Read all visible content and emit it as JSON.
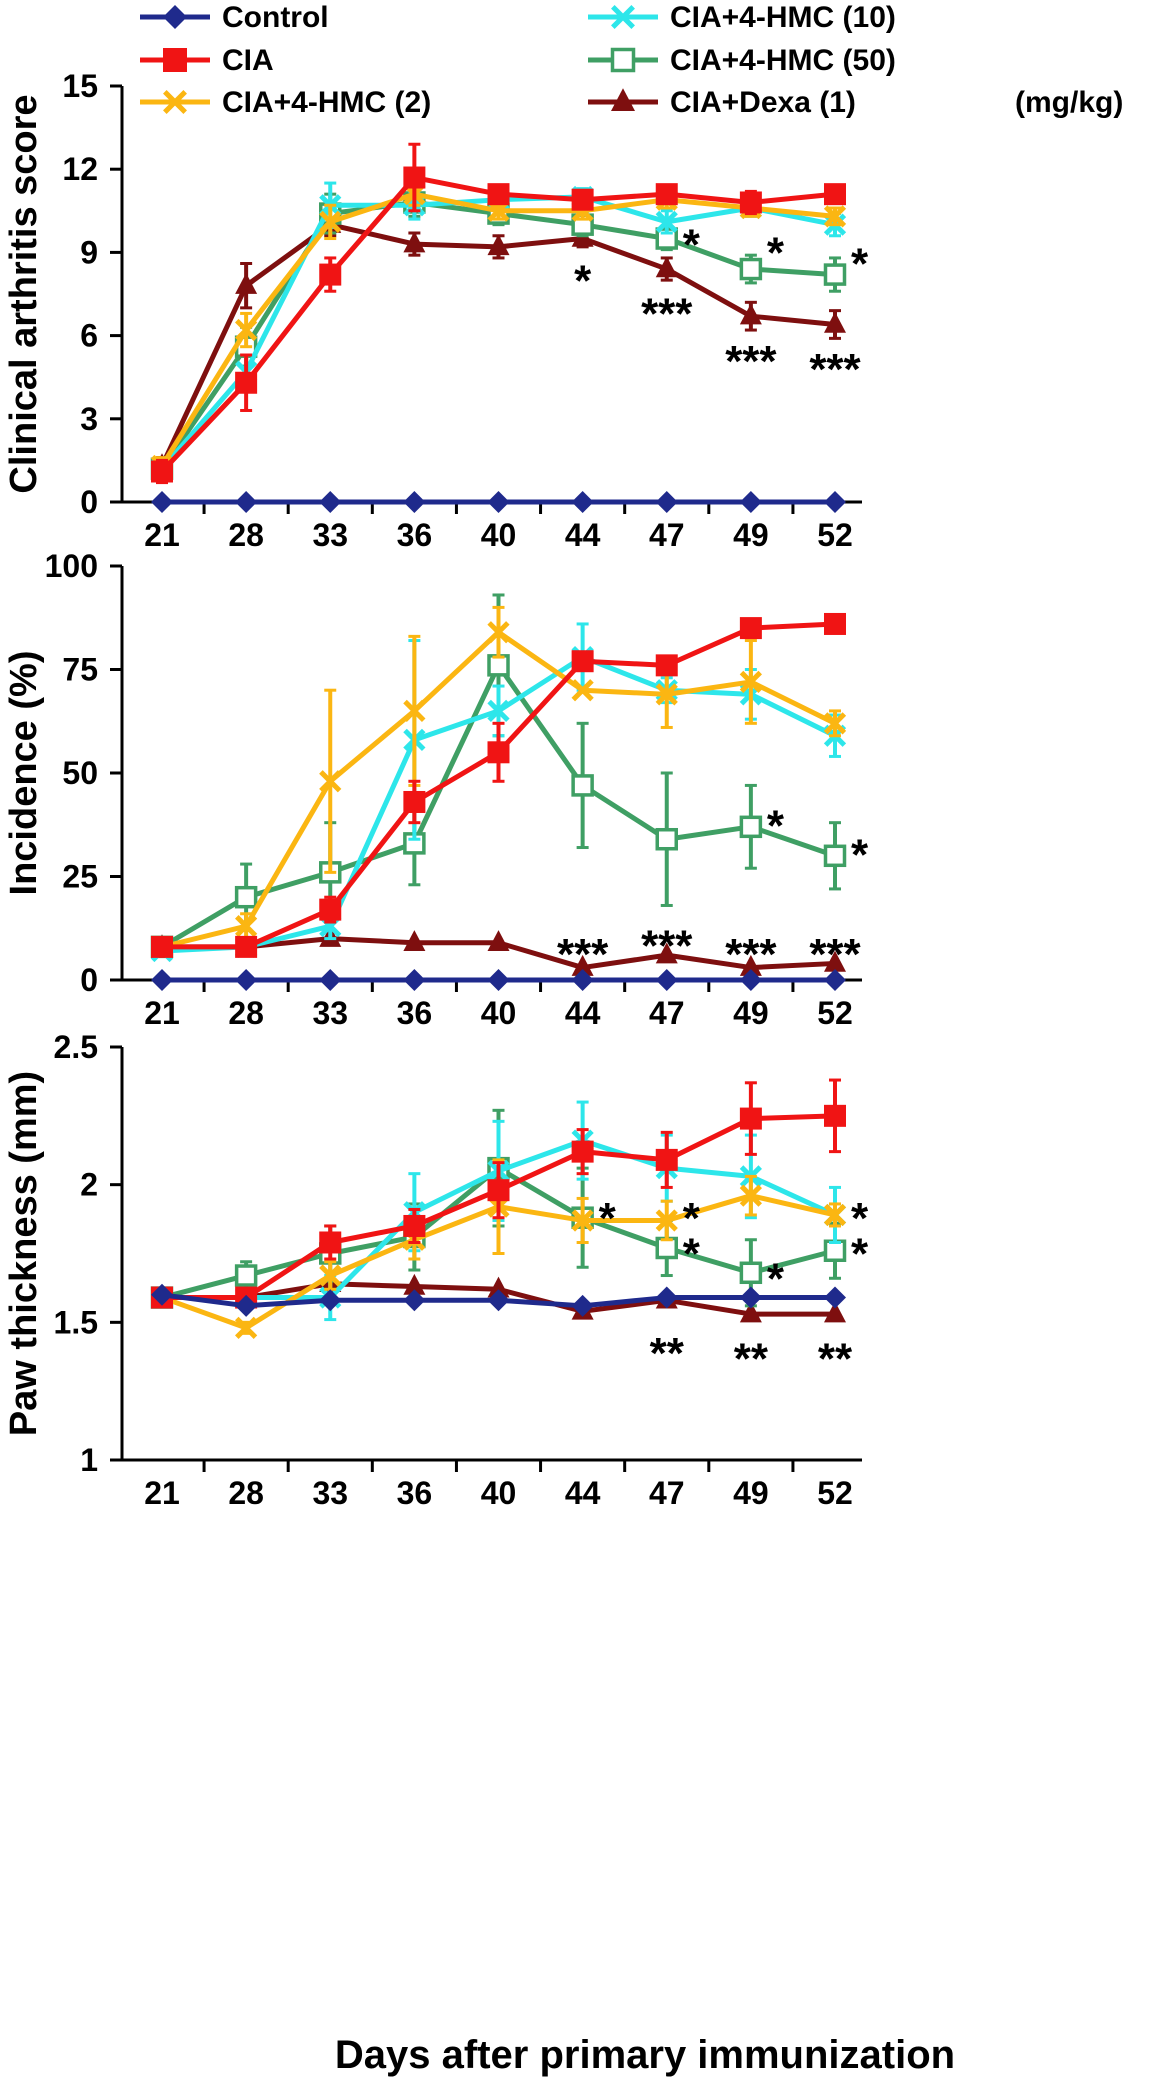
{
  "legend": {
    "entries": [
      {
        "key": "control",
        "label": "Control"
      },
      {
        "key": "cia",
        "label": "CIA"
      },
      {
        "key": "hmc2",
        "label": "CIA+4-HMC (2)"
      },
      {
        "key": "hmc10",
        "label": "CIA+4-HMC (10)"
      },
      {
        "key": "hmc50",
        "label": "CIA+4-HMC (50)"
      },
      {
        "key": "dexa",
        "label": "CIA+Dexa (1)"
      }
    ],
    "unit": "(mg/kg)"
  },
  "xlabel": "Days after primary immunization",
  "series_styles": {
    "control": {
      "color": "#1f2a8c",
      "marker": "diamond"
    },
    "cia": {
      "color": "#f01414",
      "marker": "square"
    },
    "hmc2": {
      "color": "#fbb612",
      "marker": "cross"
    },
    "hmc10": {
      "color": "#2de6ea",
      "marker": "cross"
    },
    "hmc50": {
      "color": "#3f9f64",
      "marker": "open-square"
    },
    "dexa": {
      "color": "#7e0f0f",
      "marker": "triangle"
    }
  },
  "chart_data": [
    {
      "type": "line",
      "ylabel": "Clinical arthritis score",
      "categories": [
        "21",
        "28",
        "33",
        "36",
        "40",
        "44",
        "47",
        "49",
        "52"
      ],
      "ylim": [
        0,
        15
      ],
      "yticks": [
        "0",
        "3",
        "6",
        "9",
        "12",
        "15"
      ],
      "series": [
        {
          "key": "control",
          "name": "Control",
          "values": [
            0,
            0,
            0,
            0,
            0,
            0,
            0,
            0,
            0
          ],
          "errors": [
            0,
            0,
            0,
            0,
            0,
            0,
            0,
            0,
            0
          ]
        },
        {
          "key": "cia",
          "name": "CIA",
          "values": [
            1.1,
            4.3,
            8.2,
            11.7,
            11.1,
            10.9,
            11.1,
            10.8,
            11.1
          ],
          "errors": [
            0.4,
            1.0,
            0.6,
            1.2,
            0.3,
            0.3,
            0.3,
            0.4,
            0.3
          ]
        },
        {
          "key": "hmc2",
          "name": "CIA+4-HMC (2)",
          "values": [
            1.3,
            6.2,
            10.1,
            11.1,
            10.5,
            10.5,
            10.9,
            10.6,
            10.3
          ],
          "errors": [
            0.3,
            0.6,
            0.6,
            0.4,
            0.3,
            0.3,
            0.3,
            0.3,
            0.3
          ]
        },
        {
          "key": "hmc10",
          "name": "CIA+4-HMC (10)",
          "values": [
            1.2,
            4.7,
            10.7,
            10.7,
            10.9,
            11.0,
            10.1,
            10.6,
            10.0
          ],
          "errors": [
            0.3,
            0.6,
            0.8,
            0.5,
            0.3,
            0.3,
            0.4,
            0.3,
            0.4
          ]
        },
        {
          "key": "hmc50",
          "name": "CIA+4-HMC (50)",
          "values": [
            1.2,
            5.6,
            10.4,
            10.8,
            10.4,
            10.0,
            9.5,
            8.4,
            8.2
          ],
          "errors": [
            0.3,
            0.7,
            0.7,
            0.5,
            0.4,
            0.4,
            0.4,
            0.5,
            0.6
          ]
        },
        {
          "key": "dexa",
          "name": "CIA+Dexa (1)",
          "values": [
            1.3,
            7.8,
            10.0,
            9.3,
            9.2,
            9.5,
            8.4,
            6.7,
            6.4
          ],
          "errors": [
            0.3,
            0.8,
            0.4,
            0.4,
            0.4,
            0.3,
            0.4,
            0.5,
            0.5
          ]
        }
      ],
      "annotations": [
        {
          "category": "44",
          "value": 8.1,
          "text": "*"
        },
        {
          "category": "47",
          "value": 9.4,
          "side": "right",
          "text": "*"
        },
        {
          "category": "47",
          "value": 6.9,
          "text": "***"
        },
        {
          "category": "49",
          "value": 9.1,
          "side": "right",
          "text": "*"
        },
        {
          "category": "49",
          "value": 5.2,
          "text": "***"
        },
        {
          "category": "52",
          "value": 8.7,
          "side": "right",
          "text": "*"
        },
        {
          "category": "52",
          "value": 4.9,
          "text": "***"
        }
      ]
    },
    {
      "type": "line",
      "ylabel": "Incidence (%)",
      "categories": [
        "21",
        "28",
        "33",
        "36",
        "40",
        "44",
        "47",
        "49",
        "52"
      ],
      "ylim": [
        0,
        100
      ],
      "yticks": [
        "0",
        "25",
        "50",
        "75",
        "100"
      ],
      "series": [
        {
          "key": "control",
          "name": "Control",
          "values": [
            0,
            0,
            0,
            0,
            0,
            0,
            0,
            0,
            0
          ],
          "errors": [
            0,
            0,
            0,
            0,
            0,
            0,
            0,
            0,
            0
          ]
        },
        {
          "key": "cia",
          "name": "CIA",
          "values": [
            8,
            8,
            17,
            43,
            55,
            77,
            76,
            85,
            86
          ],
          "errors": [
            0,
            0,
            3,
            5,
            7,
            0,
            0,
            0,
            0
          ]
        },
        {
          "key": "hmc2",
          "name": "CIA+4-HMC (2)",
          "values": [
            8,
            13,
            48,
            65,
            84,
            70,
            69,
            72,
            62
          ],
          "errors": [
            0,
            3,
            22,
            18,
            6,
            0,
            8,
            10,
            3
          ]
        },
        {
          "key": "hmc10",
          "name": "CIA+4-HMC (10)",
          "values": [
            7,
            8,
            13,
            58,
            65,
            78,
            70,
            69,
            59
          ],
          "errors": [
            0,
            0,
            3,
            24,
            6,
            8,
            3,
            6,
            5
          ]
        },
        {
          "key": "hmc50",
          "name": "CIA+4-HMC (50)",
          "values": [
            8,
            20,
            26,
            33,
            76,
            47,
            34,
            37,
            30
          ],
          "errors": [
            0,
            8,
            12,
            10,
            17,
            15,
            16,
            10,
            8
          ]
        },
        {
          "key": "dexa",
          "name": "CIA+Dexa (1)",
          "values": [
            8,
            8,
            10,
            9,
            9,
            3,
            6,
            3,
            4
          ],
          "errors": [
            0,
            0,
            0,
            0,
            0,
            0,
            0,
            0,
            0
          ]
        }
      ],
      "annotations": [
        {
          "category": "49",
          "value": 38,
          "side": "right",
          "text": "*"
        },
        {
          "category": "52",
          "value": 31,
          "side": "right",
          "text": "*"
        },
        {
          "category": "44",
          "value": 7,
          "text": "***"
        },
        {
          "category": "47",
          "value": 9,
          "text": "***"
        },
        {
          "category": "49",
          "value": 7,
          "text": "***"
        },
        {
          "category": "52",
          "value": 7,
          "text": "***"
        }
      ]
    },
    {
      "type": "line",
      "ylabel": "Paw thickness (mm)",
      "categories": [
        "21",
        "28",
        "33",
        "36",
        "40",
        "44",
        "47",
        "49",
        "52"
      ],
      "ylim": [
        1,
        2.5
      ],
      "yticks": [
        "1",
        "1.5",
        "2",
        "2.5"
      ],
      "series": [
        {
          "key": "control",
          "name": "Control",
          "values": [
            1.6,
            1.56,
            1.58,
            1.58,
            1.58,
            1.56,
            1.59,
            1.59,
            1.59
          ],
          "errors": [
            0,
            0,
            0,
            0,
            0,
            0,
            0,
            0,
            0
          ]
        },
        {
          "key": "cia",
          "name": "CIA",
          "values": [
            1.59,
            1.59,
            1.79,
            1.85,
            1.98,
            2.12,
            2.09,
            2.24,
            2.25
          ],
          "errors": [
            0,
            0.03,
            0.06,
            0.06,
            0.1,
            0.08,
            0.1,
            0.13,
            0.13
          ]
        },
        {
          "key": "hmc2",
          "name": "CIA+4-HMC (2)",
          "values": [
            1.59,
            1.48,
            1.67,
            1.8,
            1.92,
            1.87,
            1.87,
            1.96,
            1.89
          ],
          "errors": [
            0,
            0.02,
            0.05,
            0.07,
            0.17,
            0.08,
            0.07,
            0.07,
            0.04
          ]
        },
        {
          "key": "hmc10",
          "name": "CIA+4-HMC (10)",
          "values": [
            1.59,
            1.59,
            1.59,
            1.9,
            2.05,
            2.16,
            2.06,
            2.03,
            1.89
          ],
          "errors": [
            0,
            0.03,
            0.08,
            0.14,
            0.18,
            0.14,
            0.12,
            0.15,
            0.1
          ]
        },
        {
          "key": "hmc50",
          "name": "CIA+4-HMC (50)",
          "values": [
            1.59,
            1.67,
            1.75,
            1.81,
            2.06,
            1.88,
            1.77,
            1.68,
            1.76
          ],
          "errors": [
            0,
            0.05,
            0.1,
            0.12,
            0.21,
            0.18,
            0.1,
            0.12,
            0.1
          ]
        },
        {
          "key": "dexa",
          "name": "CIA+Dexa (1)",
          "values": [
            1.59,
            1.59,
            1.64,
            1.63,
            1.62,
            1.54,
            1.58,
            1.53,
            1.53
          ],
          "errors": [
            0,
            0,
            0,
            0,
            0,
            0,
            0,
            0,
            0
          ]
        }
      ],
      "annotations": [
        {
          "category": "44",
          "value": 1.89,
          "side": "right",
          "text": "*"
        },
        {
          "category": "47",
          "value": 1.89,
          "side": "right",
          "text": "*"
        },
        {
          "category": "47",
          "value": 1.76,
          "side": "right",
          "text": "*"
        },
        {
          "category": "47",
          "value": 1.4,
          "text": "**"
        },
        {
          "category": "49",
          "value": 1.67,
          "side": "right",
          "text": "*"
        },
        {
          "category": "49",
          "value": 1.38,
          "text": "**"
        },
        {
          "category": "52",
          "value": 1.89,
          "side": "right",
          "text": "*"
        },
        {
          "category": "52",
          "value": 1.76,
          "side": "right",
          "text": "*"
        },
        {
          "category": "52",
          "value": 1.38,
          "text": "**"
        }
      ]
    }
  ]
}
